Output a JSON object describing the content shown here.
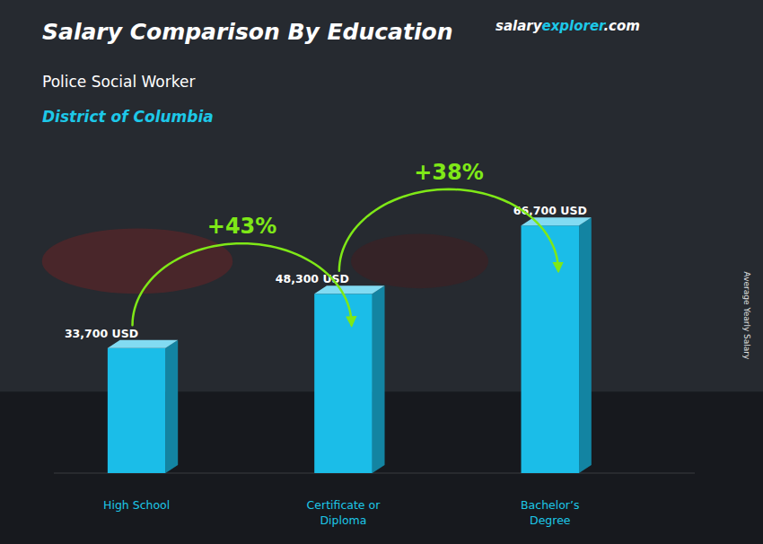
{
  "chart_data": {
    "type": "bar",
    "title": "Salary Comparison By Education",
    "subtitle": [
      "Police Social Worker",
      "District of Columbia"
    ],
    "brand": [
      "salary",
      "explorer",
      ".com"
    ],
    "ylabel": "Average Yearly Salary",
    "categories": [
      "High School",
      "Certificate or\nDiploma",
      "Bachelor’s\nDegree"
    ],
    "values": [
      33700,
      48300,
      66700
    ],
    "value_labels": [
      "33,700 USD",
      "48,300 USD",
      "66,700 USD"
    ],
    "data_labels": true,
    "annotations": [
      "+43%",
      "+38%"
    ],
    "color": "#1BBDE8",
    "ylim": [
      0,
      82000
    ],
    "tick_labels": "x",
    "grid": false
  }
}
